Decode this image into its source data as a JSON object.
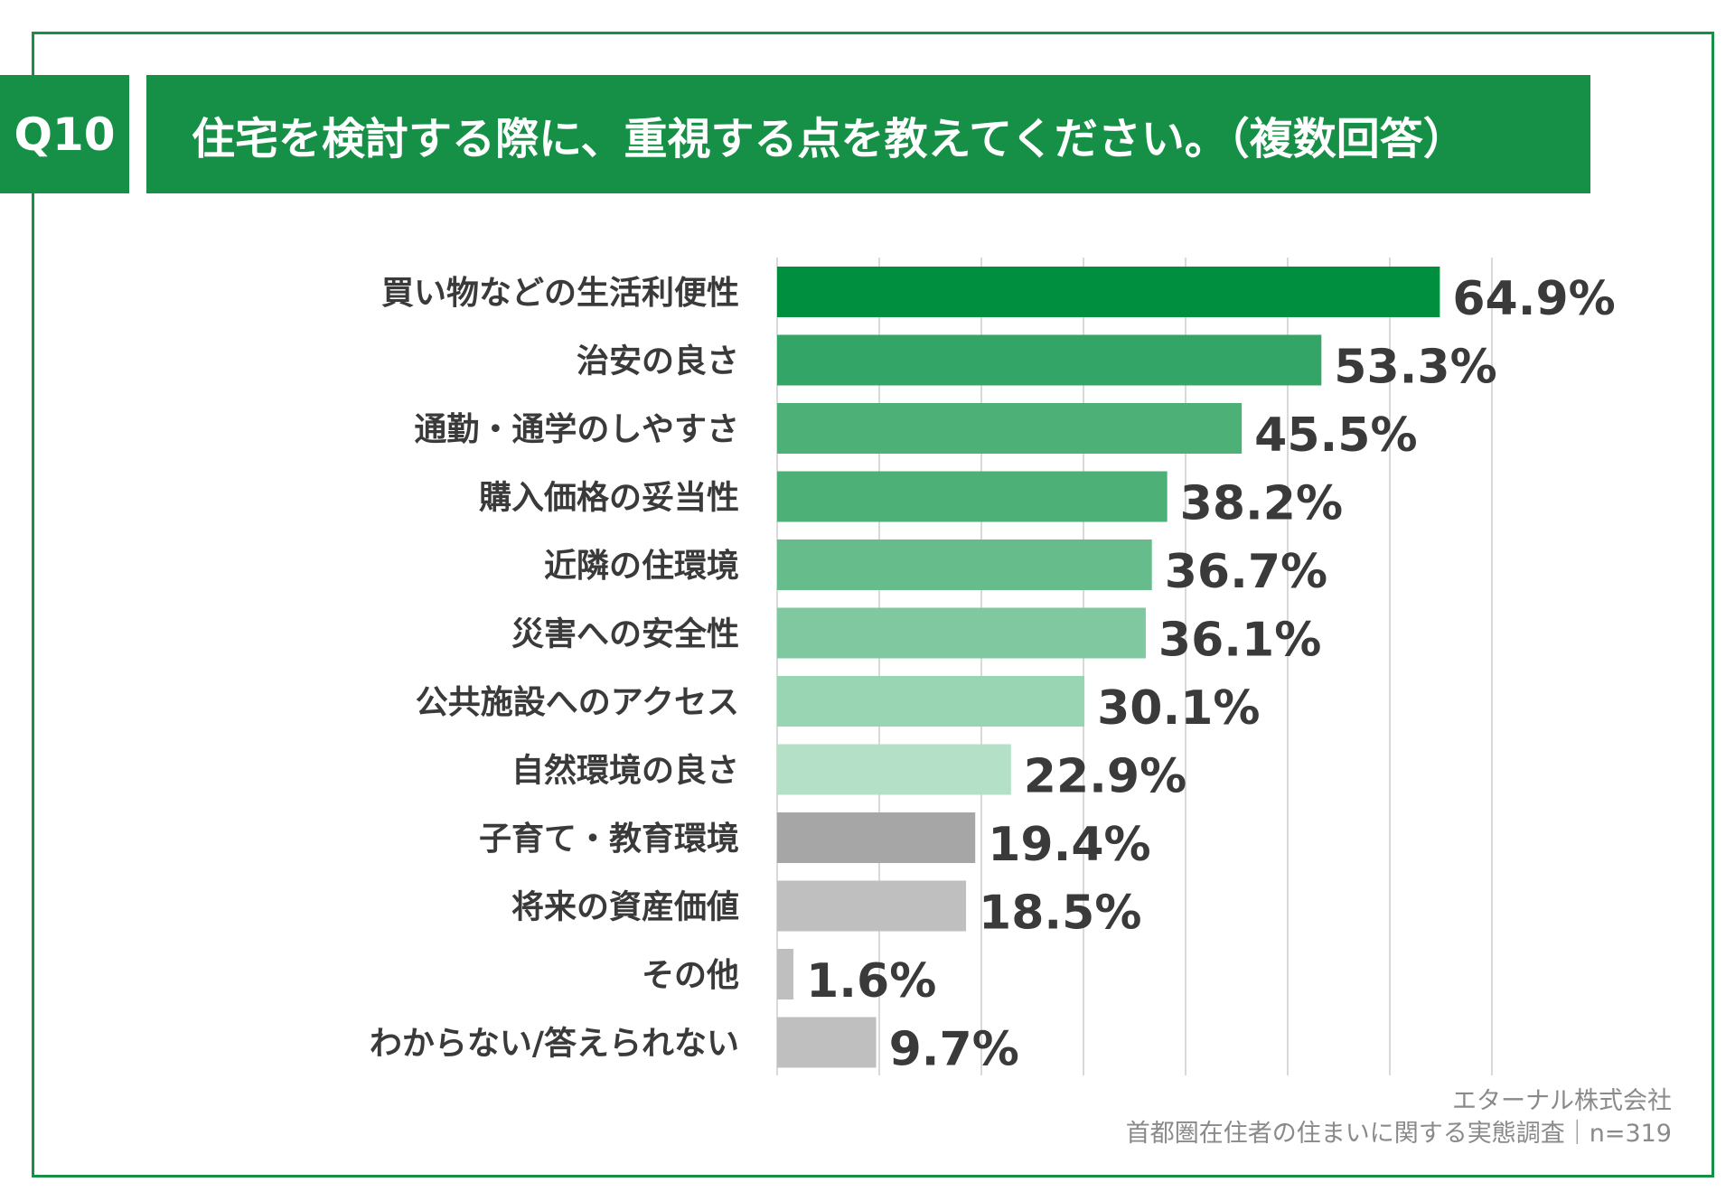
{
  "header": {
    "question_no": "Q10",
    "title": "住宅を検討する際に、重視する点を教えてください。（複数回答）"
  },
  "source": {
    "company": "エターナル株式会社",
    "survey": "首都圏在住者の住まいに関する実態調査｜n=319"
  },
  "chart_data": {
    "type": "bar",
    "orientation": "horizontal",
    "title": "住宅を検討する際に、重視する点を教えてください。（複数回答）",
    "unit": "%",
    "xlim": [
      0,
      70
    ],
    "grid": true,
    "categories": [
      "買い物などの生活利便性",
      "治安の良さ",
      "通勤・通学のしやすさ",
      "購入価格の妥当性",
      "近隣の住環境",
      "災害への安全性",
      "公共施設へのアクセス",
      "自然環境の良さ",
      "子育て・教育環境",
      "将来の資産価値",
      "その他",
      "わからない/答えられない"
    ],
    "values": [
      64.9,
      53.3,
      45.5,
      38.2,
      36.7,
      36.1,
      30.1,
      22.9,
      19.4,
      18.5,
      1.6,
      9.7
    ],
    "value_labels": [
      "64.9%",
      "53.3%",
      "45.5%",
      "38.2%",
      "36.7%",
      "36.1%",
      "30.1%",
      "22.9%",
      "19.4%",
      "18.5%",
      "1.6%",
      "9.7%"
    ],
    "colors": [
      "#008f3e",
      "#33a566",
      "#4db077",
      "#4db077",
      "#66bc8b",
      "#80c9a0",
      "#99d5b3",
      "#b3e0c6",
      "#a6a6a6",
      "#bfbfbf",
      "#bfbfbf",
      "#bfbfbf"
    ]
  }
}
